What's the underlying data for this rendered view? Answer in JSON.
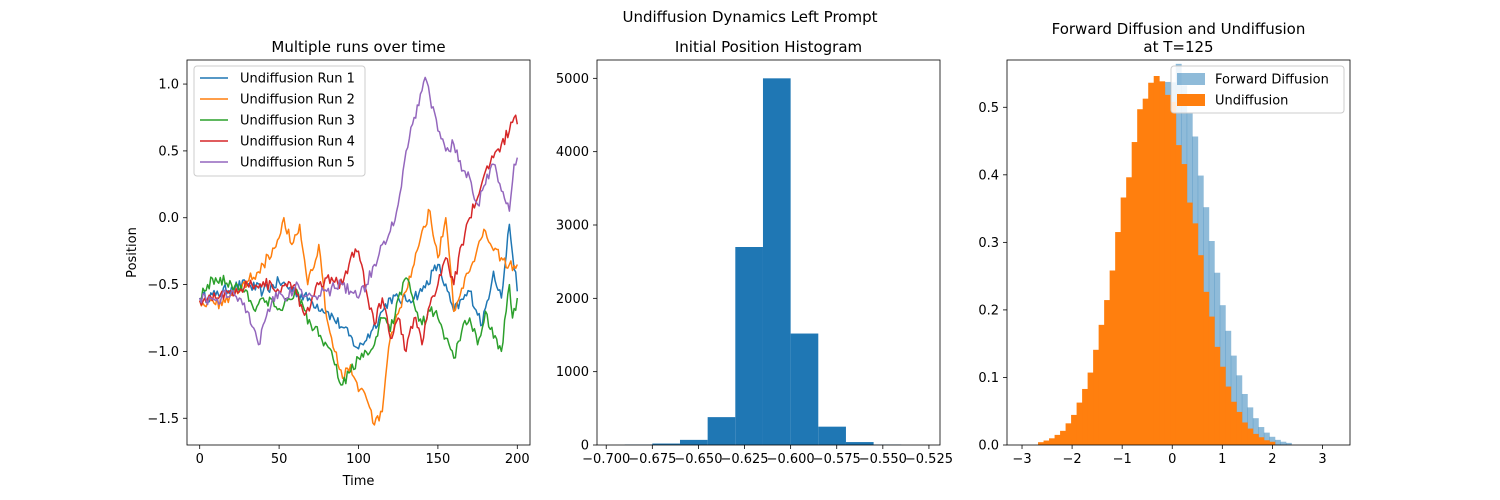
{
  "suptitle": "Undiffusion Dynamics Left Prompt",
  "chart_data": [
    {
      "type": "line",
      "title": "Multiple runs over time",
      "xlabel": "Time",
      "ylabel": "Position",
      "xlim": [
        -8,
        208
      ],
      "ylim": [
        -1.7,
        1.18
      ],
      "xticks": [
        0,
        50,
        100,
        150,
        200
      ],
      "yticks": [
        -1.5,
        -1.0,
        -0.5,
        0.0,
        0.5,
        1.0
      ],
      "ytick_labels": [
        "−1.5",
        "−1.0",
        "−0.5",
        "0.0",
        "0.5",
        "1.0"
      ],
      "legend_position": "upper-left",
      "series": [
        {
          "name": "Undiffusion Run 1",
          "color": "#1f77b4",
          "points": [
            [
              0,
              -0.6
            ],
            [
              10,
              -0.58
            ],
            [
              20,
              -0.52
            ],
            [
              30,
              -0.5
            ],
            [
              40,
              -0.55
            ],
            [
              50,
              -0.48
            ],
            [
              60,
              -0.55
            ],
            [
              70,
              -0.62
            ],
            [
              80,
              -0.7
            ],
            [
              90,
              -0.82
            ],
            [
              100,
              -0.98
            ],
            [
              108,
              -0.85
            ],
            [
              115,
              -0.7
            ],
            [
              120,
              -0.6
            ],
            [
              130,
              -0.62
            ],
            [
              140,
              -0.55
            ],
            [
              150,
              -0.35
            ],
            [
              160,
              -0.7
            ],
            [
              170,
              -0.55
            ],
            [
              178,
              -0.8
            ],
            [
              185,
              -0.4
            ],
            [
              190,
              -0.6
            ],
            [
              195,
              -0.05
            ],
            [
              200,
              -0.55
            ]
          ]
        },
        {
          "name": "Undiffusion Run 2",
          "color": "#ff7f0e",
          "points": [
            [
              0,
              -0.62
            ],
            [
              10,
              -0.65
            ],
            [
              20,
              -0.58
            ],
            [
              30,
              -0.48
            ],
            [
              40,
              -0.35
            ],
            [
              50,
              -0.15
            ],
            [
              53,
              0.0
            ],
            [
              58,
              -0.2
            ],
            [
              63,
              -0.05
            ],
            [
              68,
              -0.5
            ],
            [
              75,
              -0.2
            ],
            [
              80,
              -0.75
            ],
            [
              85,
              -1.0
            ],
            [
              90,
              -1.2
            ],
            [
              95,
              -1.1
            ],
            [
              100,
              -1.3
            ],
            [
              105,
              -1.35
            ],
            [
              110,
              -1.55
            ],
            [
              115,
              -1.45
            ],
            [
              120,
              -0.9
            ],
            [
              130,
              -0.55
            ],
            [
              140,
              -0.1
            ],
            [
              145,
              0.05
            ],
            [
              150,
              -0.3
            ],
            [
              155,
              0.0
            ],
            [
              160,
              -0.7
            ],
            [
              170,
              -0.4
            ],
            [
              180,
              -0.1
            ],
            [
              190,
              -0.3
            ],
            [
              195,
              -0.35
            ],
            [
              200,
              -0.35
            ]
          ]
        },
        {
          "name": "Undiffusion Run 3",
          "color": "#2ca02c",
          "points": [
            [
              0,
              -0.6
            ],
            [
              5,
              -0.5
            ],
            [
              10,
              -0.45
            ],
            [
              20,
              -0.5
            ],
            [
              30,
              -0.55
            ],
            [
              35,
              -0.7
            ],
            [
              40,
              -0.6
            ],
            [
              50,
              -0.68
            ],
            [
              60,
              -0.55
            ],
            [
              70,
              -0.8
            ],
            [
              80,
              -0.95
            ],
            [
              85,
              -1.1
            ],
            [
              90,
              -1.25
            ],
            [
              95,
              -1.15
            ],
            [
              100,
              -1.05
            ],
            [
              110,
              -0.95
            ],
            [
              115,
              -0.75
            ],
            [
              120,
              -0.85
            ],
            [
              125,
              -0.6
            ],
            [
              130,
              -0.45
            ],
            [
              135,
              -0.65
            ],
            [
              140,
              -0.8
            ],
            [
              145,
              -0.7
            ],
            [
              150,
              -0.75
            ],
            [
              155,
              -0.9
            ],
            [
              160,
              -1.05
            ],
            [
              165,
              -0.85
            ],
            [
              170,
              -0.75
            ],
            [
              175,
              -0.95
            ],
            [
              180,
              -0.7
            ],
            [
              185,
              -0.9
            ],
            [
              190,
              -1.0
            ],
            [
              195,
              -0.5
            ],
            [
              197,
              -0.75
            ],
            [
              200,
              -0.6
            ]
          ]
        },
        {
          "name": "Undiffusion Run 4",
          "color": "#d62728",
          "points": [
            [
              0,
              -0.62
            ],
            [
              10,
              -0.6
            ],
            [
              20,
              -0.55
            ],
            [
              30,
              -0.5
            ],
            [
              40,
              -0.48
            ],
            [
              50,
              -0.55
            ],
            [
              60,
              -0.5
            ],
            [
              65,
              -0.7
            ],
            [
              70,
              -0.65
            ],
            [
              75,
              -0.5
            ],
            [
              80,
              -0.45
            ],
            [
              90,
              -0.5
            ],
            [
              95,
              -0.3
            ],
            [
              100,
              -0.25
            ],
            [
              105,
              -0.55
            ],
            [
              110,
              -0.8
            ],
            [
              115,
              -0.6
            ],
            [
              120,
              -0.9
            ],
            [
              125,
              -0.75
            ],
            [
              130,
              -1.0
            ],
            [
              135,
              -0.75
            ],
            [
              140,
              -0.95
            ],
            [
              145,
              -0.65
            ],
            [
              150,
              -0.5
            ],
            [
              155,
              -0.3
            ],
            [
              160,
              -0.5
            ],
            [
              165,
              -0.2
            ],
            [
              170,
              0.0
            ],
            [
              175,
              0.15
            ],
            [
              180,
              0.35
            ],
            [
              185,
              0.45
            ],
            [
              190,
              0.55
            ],
            [
              195,
              0.65
            ],
            [
              198,
              0.75
            ],
            [
              200,
              0.7
            ]
          ]
        },
        {
          "name": "Undiffusion Run 5",
          "color": "#9467bd",
          "points": [
            [
              0,
              -0.6
            ],
            [
              10,
              -0.62
            ],
            [
              20,
              -0.55
            ],
            [
              25,
              -0.6
            ],
            [
              30,
              -0.7
            ],
            [
              35,
              -0.85
            ],
            [
              37,
              -0.95
            ],
            [
              40,
              -0.8
            ],
            [
              45,
              -0.65
            ],
            [
              50,
              -0.55
            ],
            [
              55,
              -0.6
            ],
            [
              60,
              -0.52
            ],
            [
              70,
              -0.58
            ],
            [
              80,
              -0.55
            ],
            [
              90,
              -0.5
            ],
            [
              95,
              -0.55
            ],
            [
              100,
              -0.6
            ],
            [
              105,
              -0.5
            ],
            [
              110,
              -0.35
            ],
            [
              115,
              -0.2
            ],
            [
              120,
              -0.1
            ],
            [
              125,
              0.1
            ],
            [
              128,
              0.35
            ],
            [
              130,
              0.5
            ],
            [
              135,
              0.75
            ],
            [
              140,
              0.95
            ],
            [
              142,
              1.05
            ],
            [
              145,
              0.9
            ],
            [
              150,
              0.65
            ],
            [
              155,
              0.5
            ],
            [
              160,
              0.55
            ],
            [
              165,
              0.35
            ],
            [
              170,
              0.3
            ],
            [
              175,
              0.1
            ],
            [
              180,
              0.25
            ],
            [
              185,
              0.4
            ],
            [
              190,
              0.2
            ],
            [
              195,
              0.05
            ],
            [
              198,
              0.4
            ],
            [
              200,
              0.45
            ]
          ]
        }
      ]
    },
    {
      "type": "bar",
      "title": "Initial Position Histogram",
      "xlim": [
        -0.705,
        -0.519
      ],
      "ylim": [
        0,
        5250
      ],
      "xticks": [
        -0.7,
        -0.675,
        -0.65,
        -0.625,
        -0.6,
        -0.575,
        -0.55,
        -0.525
      ],
      "xtick_labels": [
        "−0.700",
        "−0.675",
        "−0.650",
        "−0.625",
        "−0.600",
        "−0.575",
        "−0.550",
        "−0.525"
      ],
      "yticks": [
        0,
        1000,
        2000,
        3000,
        4000,
        5000
      ],
      "color": "#1f77b4",
      "bin_edges": [
        -0.69,
        -0.675,
        -0.66,
        -0.645,
        -0.63,
        -0.615,
        -0.6,
        -0.585,
        -0.57,
        -0.555,
        -0.54
      ],
      "counts": [
        5,
        20,
        70,
        380,
        2700,
        5000,
        1520,
        250,
        40,
        5
      ]
    },
    {
      "type": "bar",
      "title": "Forward Diffusion and Undiffusion",
      "subtitle": "at T=125",
      "xlim": [
        -3.3,
        3.55
      ],
      "ylim": [
        0,
        0.57
      ],
      "xticks": [
        -3,
        -2,
        -1,
        0,
        1,
        2,
        3
      ],
      "xtick_labels": [
        "−3",
        "−2",
        "−1",
        "0",
        "1",
        "2",
        "3"
      ],
      "yticks": [
        0.0,
        0.1,
        0.2,
        0.3,
        0.4,
        0.5
      ],
      "legend_position": "upper-right",
      "series": [
        {
          "name": "Forward Diffusion",
          "color": "#1f77b4",
          "alpha": 0.5,
          "mean": 0.0,
          "std": 0.72
        },
        {
          "name": "Undiffusion",
          "color": "#ff7f0e",
          "alpha": 1.0,
          "mean": -0.3,
          "std": 0.745
        }
      ]
    }
  ]
}
